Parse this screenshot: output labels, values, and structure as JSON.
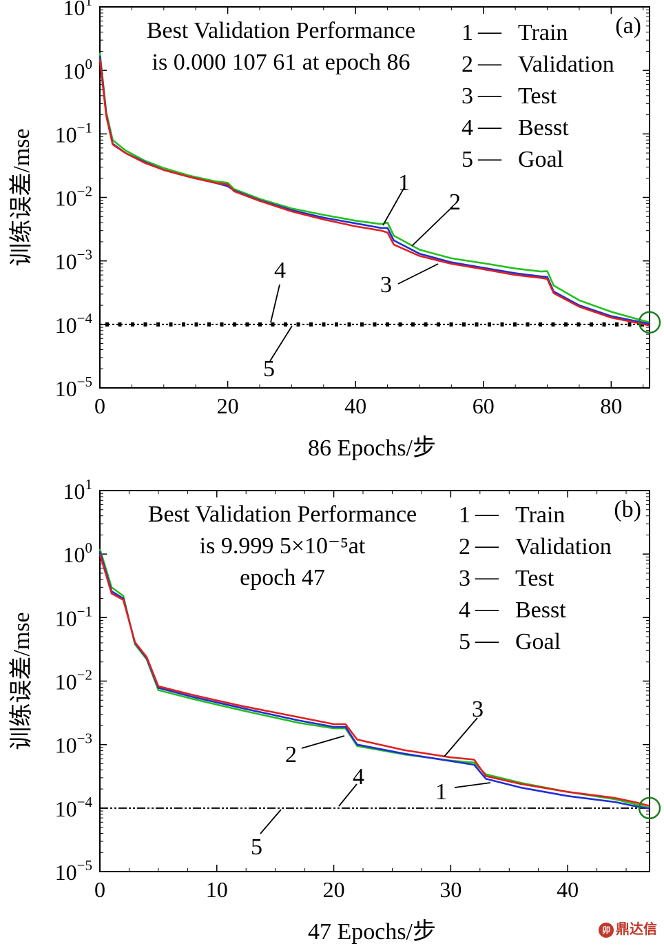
{
  "chart_data": [
    {
      "type": "line",
      "panel_label": "(a)",
      "title_lines": [
        "Best Validation Performance",
        "is 0.000 107 61 at epoch 86"
      ],
      "xlabel": "86 Epochs/步",
      "ylabel": "训练误差/mse",
      "xlim": [
        0,
        86
      ],
      "ylim_log10": [
        -5,
        1
      ],
      "yscale": "log",
      "xticks": [
        0,
        20,
        40,
        60,
        80
      ],
      "yticks": [
        {
          "base": "10",
          "exp": "1",
          "value": 1
        },
        {
          "base": "10",
          "exp": "0",
          "value": 0
        },
        {
          "base": "10",
          "exp": "−1",
          "value": -1
        },
        {
          "base": "10",
          "exp": "−2",
          "value": -2
        },
        {
          "base": "10",
          "exp": "−3",
          "value": -3
        },
        {
          "base": "10",
          "exp": "−4",
          "value": -4
        },
        {
          "base": "10",
          "exp": "−5",
          "value": -5
        }
      ],
      "legend": [
        {
          "num": "1",
          "dash": "—",
          "label": "Train"
        },
        {
          "num": "2",
          "dash": "—",
          "label": "Validation"
        },
        {
          "num": "3",
          "dash": "—",
          "label": "Test"
        },
        {
          "num": "4",
          "dash": "—",
          "label": "Besst"
        },
        {
          "num": "5",
          "dash": "—",
          "label": "Goal"
        }
      ],
      "series": [
        {
          "name": "Train",
          "color": "#1f2fd6",
          "x": [
            0,
            1,
            2,
            4,
            7,
            10,
            14,
            18,
            20,
            21,
            25,
            30,
            35,
            40,
            44,
            45,
            46,
            50,
            55,
            60,
            65,
            69,
            70,
            71,
            75,
            80,
            84,
            86
          ],
          "y": [
            1.7,
            0.2,
            0.07,
            0.05,
            0.036,
            0.027,
            0.021,
            0.017,
            0.015,
            0.0128,
            0.009,
            0.0063,
            0.0048,
            0.0039,
            0.0033,
            0.0033,
            0.0021,
            0.0013,
            0.00095,
            0.00078,
            0.00064,
            0.00057,
            0.00056,
            0.00033,
            0.0002,
            0.000135,
            0.000112,
            0.000102
          ]
        },
        {
          "name": "Validation",
          "color": "#22c11c",
          "x": [
            0,
            1,
            2,
            4,
            7,
            10,
            14,
            18,
            20,
            21,
            25,
            30,
            35,
            40,
            44,
            45,
            46,
            50,
            55,
            60,
            65,
            69,
            70,
            71,
            75,
            80,
            84,
            86
          ],
          "y": [
            1.9,
            0.22,
            0.08,
            0.055,
            0.038,
            0.029,
            0.022,
            0.018,
            0.017,
            0.0135,
            0.0095,
            0.0067,
            0.0053,
            0.0043,
            0.0038,
            0.004,
            0.0025,
            0.0015,
            0.0011,
            0.00092,
            0.00076,
            0.00068,
            0.00069,
            0.00041,
            0.00024,
            0.000158,
            0.000122,
            0.0001076
          ]
        },
        {
          "name": "Test",
          "color": "#e02020",
          "x": [
            0,
            1,
            2,
            4,
            7,
            10,
            14,
            18,
            20,
            21,
            25,
            30,
            35,
            40,
            44,
            45,
            46,
            50,
            55,
            60,
            65,
            69,
            70,
            71,
            75,
            80,
            84,
            86
          ],
          "y": [
            1.5,
            0.19,
            0.068,
            0.05,
            0.035,
            0.027,
            0.021,
            0.017,
            0.016,
            0.0125,
            0.0088,
            0.006,
            0.0045,
            0.0035,
            0.003,
            0.0028,
            0.0018,
            0.0012,
            0.0009,
            0.00074,
            0.0006,
            0.00054,
            0.00052,
            0.00031,
            0.00019,
            0.000128,
            0.000106,
            9.6e-05
          ]
        }
      ],
      "best_value": 0.00010761,
      "goal_value": 0.0001,
      "best_epoch": 86,
      "annotations": [
        {
          "label": "1",
          "series": "Train"
        },
        {
          "label": "2",
          "series": "Validation"
        },
        {
          "label": "3",
          "series": "Test"
        },
        {
          "label": "4",
          "series": "Besst"
        },
        {
          "label": "5",
          "series": "Goal"
        }
      ]
    },
    {
      "type": "line",
      "panel_label": "(b)",
      "title_lines": [
        "Best Validation Performance",
        "is 9.999 5×10⁻⁵at",
        "epoch 47"
      ],
      "xlabel": "47 Epochs/步",
      "ylabel": "训练误差/mse",
      "xlim": [
        0,
        47
      ],
      "ylim_log10": [
        -5,
        1
      ],
      "yscale": "log",
      "xticks": [
        0,
        10,
        20,
        30,
        40
      ],
      "yticks": [
        {
          "base": "10",
          "exp": "1",
          "value": 1
        },
        {
          "base": "10",
          "exp": "0",
          "value": 0
        },
        {
          "base": "10",
          "exp": "−1",
          "value": -1
        },
        {
          "base": "10",
          "exp": "−2",
          "value": -2
        },
        {
          "base": "10",
          "exp": "−3",
          "value": -3
        },
        {
          "base": "10",
          "exp": "−4",
          "value": -4
        },
        {
          "base": "10",
          "exp": "−5",
          "value": -5
        }
      ],
      "legend": [
        {
          "num": "1",
          "dash": "—",
          "label": "Train"
        },
        {
          "num": "2",
          "dash": "—",
          "label": "Validation"
        },
        {
          "num": "3",
          "dash": "—",
          "label": "Test"
        },
        {
          "num": "4",
          "dash": "—",
          "label": "Besst"
        },
        {
          "num": "5",
          "dash": "—",
          "label": "Goal"
        }
      ],
      "series": [
        {
          "name": "Train",
          "color": "#1f2fd6",
          "x": [
            0,
            1,
            2,
            3,
            4,
            5,
            8,
            12,
            17,
            20,
            21,
            22,
            26,
            30,
            32,
            33,
            36,
            40,
            44,
            46,
            47
          ],
          "y": [
            1.1,
            0.26,
            0.2,
            0.04,
            0.023,
            0.0078,
            0.0056,
            0.0038,
            0.0024,
            0.0019,
            0.0019,
            0.001,
            0.00072,
            0.00055,
            0.00048,
            0.00029,
            0.00021,
            0.000155,
            0.000125,
            0.000105,
            9.8e-05
          ]
        },
        {
          "name": "Validation",
          "color": "#22c11c",
          "x": [
            0,
            1,
            2,
            3,
            4,
            5,
            8,
            12,
            17,
            20,
            21,
            22,
            26,
            30,
            32,
            33,
            36,
            40,
            44,
            46,
            47
          ],
          "y": [
            1.2,
            0.3,
            0.22,
            0.038,
            0.022,
            0.0072,
            0.0052,
            0.0035,
            0.0022,
            0.0018,
            0.0018,
            0.00095,
            0.0007,
            0.00056,
            0.00052,
            0.00034,
            0.00025,
            0.00018,
            0.000138,
            0.000112,
            9.9995e-05
          ]
        },
        {
          "name": "Test",
          "color": "#e02020",
          "x": [
            0,
            1,
            2,
            3,
            4,
            5,
            8,
            12,
            17,
            20,
            21,
            22,
            26,
            30,
            32,
            33,
            36,
            40,
            44,
            46,
            47
          ],
          "y": [
            1.0,
            0.24,
            0.19,
            0.041,
            0.024,
            0.0083,
            0.006,
            0.0041,
            0.0027,
            0.0021,
            0.0021,
            0.0012,
            0.00082,
            0.00063,
            0.00058,
            0.00032,
            0.00024,
            0.00018,
            0.000145,
            0.000121,
            0.000108
          ]
        }
      ],
      "best_value": 9.9995e-05,
      "goal_value": 0.0001,
      "best_epoch": 47,
      "annotations": [
        {
          "label": "1",
          "series": "Train"
        },
        {
          "label": "2",
          "series": "Validation"
        },
        {
          "label": "3",
          "series": "Test"
        },
        {
          "label": "4",
          "series": "Besst"
        },
        {
          "label": "5",
          "series": "Goal"
        }
      ]
    }
  ],
  "watermark": {
    "icon": "dingdaxin-logo-icon",
    "text": "鼎达信"
  }
}
